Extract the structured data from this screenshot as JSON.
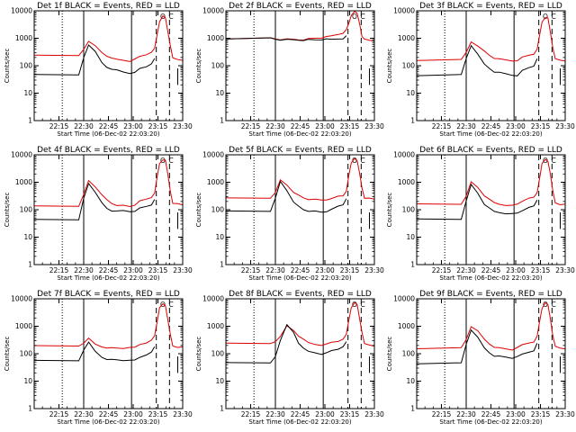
{
  "chart_data": {
    "type": "line",
    "y_scale": "log",
    "ylim": [
      1,
      10000
    ],
    "y_ticks": [
      1,
      10,
      100,
      1000,
      10000
    ],
    "y_tick_labels": [
      "1",
      "10",
      "100",
      "1000",
      "10000"
    ],
    "x_range_min": [
      0,
      90
    ],
    "x_tick_min": [
      15,
      30,
      45,
      60,
      75,
      90
    ],
    "x_tick_labels": [
      "22:15",
      "22:30",
      "22:45",
      "23:00",
      "23:15",
      "23:30"
    ],
    "xlabel": "Start Time (06-Dec-02 22:03:20)",
    "ylabel": "Counts/sec",
    "legend_text": "BLACK = Events, RED = LLD",
    "colors": {
      "events": "#000000",
      "lld": "#dd0000"
    },
    "markers": {
      "dotted": [
        17
      ],
      "solid": [
        30,
        59
      ],
      "dashed": [
        74,
        82
      ],
      "O_label_at": 78,
      "C_label_at": 83
    },
    "series_x": [
      0,
      27,
      30,
      33,
      37,
      41,
      44,
      47,
      50,
      54,
      58,
      61,
      64,
      68,
      71,
      73,
      74.5,
      76,
      78,
      79.5,
      81,
      82.5,
      84,
      87,
      90
    ],
    "panels": [
      {
        "title": "Det 1f BLACK = Events, RED = LLD",
        "lld": [
          230,
          230,
          400,
          820,
          520,
          300,
          230,
          180,
          170,
          160,
          150,
          170,
          220,
          260,
          290,
          420,
          1400,
          4200,
          6300,
          5600,
          1800,
          500,
          190,
          170,
          165
        ],
        "events": [
          45,
          45,
          200,
          600,
          320,
          130,
          90,
          70,
          70,
          60,
          55,
          55,
          80,
          95,
          110,
          180
        ]
      },
      {
        "title": "Det 2f BLACK = Events, RED = LLD",
        "lld": [
          1000,
          1000,
          950,
          900,
          900,
          900,
          880,
          900,
          950,
          1000,
          1050,
          1100,
          1200,
          1400,
          1600,
          2000,
          3500,
          7000,
          9000,
          8000,
          3500,
          1200,
          900,
          850,
          830
        ],
        "events": [
          1000,
          1000,
          920,
          880,
          870,
          870,
          860,
          870,
          880,
          880,
          900,
          900,
          900,
          950,
          1000,
          1200
        ]
      },
      {
        "title": "Det 3f BLACK = Events, RED = LLD",
        "lld": [
          160,
          160,
          300,
          750,
          550,
          330,
          240,
          190,
          170,
          160,
          150,
          160,
          200,
          240,
          270,
          380,
          1300,
          4000,
          6000,
          5300,
          1700,
          450,
          170,
          155,
          150
        ],
        "events": [
          45,
          45,
          180,
          550,
          280,
          110,
          80,
          60,
          55,
          50,
          45,
          45,
          65,
          85,
          100,
          170
        ]
      },
      {
        "title": "Det 4f BLACK = Events, RED = LLD",
        "lld": [
          140,
          140,
          350,
          1150,
          700,
          330,
          230,
          170,
          150,
          140,
          130,
          150,
          200,
          240,
          280,
          420,
          1500,
          4800,
          6800,
          6000,
          1900,
          470,
          180,
          160,
          150
        ],
        "events": [
          45,
          45,
          250,
          900,
          450,
          170,
          110,
          90,
          95,
          90,
          85,
          90,
          110,
          130,
          150,
          250
        ]
      },
      {
        "title": "Det 5f BLACK = Events, RED = LLD",
        "lld": [
          270,
          270,
          400,
          1200,
          800,
          450,
          330,
          270,
          240,
          230,
          220,
          230,
          270,
          300,
          320,
          480,
          1700,
          5000,
          7500,
          6500,
          2100,
          600,
          270,
          250,
          240
        ],
        "events": [
          90,
          90,
          250,
          1050,
          500,
          200,
          130,
          100,
          90,
          85,
          80,
          85,
          110,
          130,
          150,
          260
        ]
      },
      {
        "title": "Det 6f BLACK = Events, RED = LLD",
        "lld": [
          160,
          160,
          330,
          1000,
          650,
          330,
          230,
          180,
          160,
          150,
          140,
          160,
          210,
          250,
          280,
          420,
          1500,
          4700,
          6800,
          6000,
          1900,
          470,
          180,
          160,
          155
        ],
        "events": [
          45,
          45,
          220,
          800,
          400,
          160,
          110,
          85,
          80,
          75,
          70,
          75,
          95,
          115,
          135,
          230
        ]
      },
      {
        "title": "Det 7f BLACK = Events, RED = LLD",
        "lld": [
          190,
          190,
          250,
          350,
          220,
          180,
          170,
          160,
          160,
          160,
          160,
          170,
          220,
          260,
          300,
          450,
          1500,
          4500,
          6500,
          5700,
          1800,
          480,
          190,
          175,
          170
        ],
        "events": [
          55,
          55,
          140,
          250,
          120,
          75,
          65,
          60,
          60,
          58,
          55,
          58,
          75,
          95,
          110,
          180
        ]
      },
      {
        "title": "Det 8f BLACK = Events, RED = LLD",
        "lld": [
          230,
          230,
          280,
          450,
          1000,
          700,
          450,
          320,
          250,
          220,
          210,
          220,
          260,
          290,
          320,
          500,
          1700,
          5000,
          7000,
          6200,
          2000,
          550,
          230,
          210,
          200
        ],
        "events": [
          45,
          45,
          80,
          320,
          1100,
          600,
          250,
          150,
          120,
          110,
          100,
          105,
          130,
          150,
          170,
          270
        ]
      },
      {
        "title": "Det 9f BLACK = Events, RED = LLD",
        "lld": [
          160,
          160,
          330,
          1000,
          650,
          330,
          230,
          180,
          160,
          150,
          140,
          160,
          210,
          250,
          280,
          420,
          1500,
          4700,
          6800,
          6000,
          1900,
          470,
          180,
          160,
          155
        ],
        "events": [
          45,
          45,
          220,
          750,
          380,
          160,
          110,
          85,
          80,
          75,
          70,
          75,
          95,
          115,
          135,
          230
        ]
      }
    ]
  }
}
